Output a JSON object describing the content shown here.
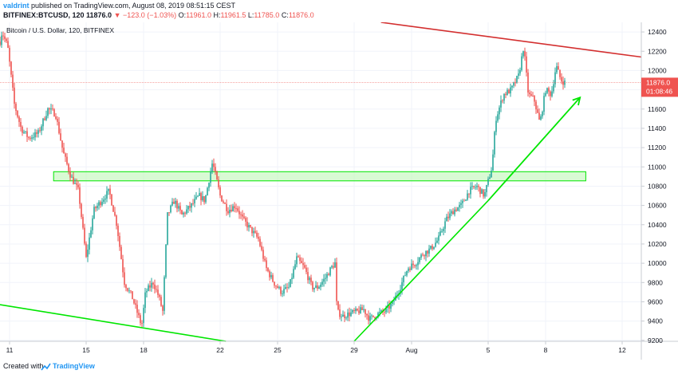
{
  "header": {
    "user": "valdrint",
    "published": "published on TradingView.com, August 08, 2019 08:51:15 CEST",
    "symbol": "BITFINEX:BTCUSD, 120",
    "last": "11876.0",
    "change_arrow": "▼",
    "change": "−123.0 (−1.03%)",
    "ohlc": {
      "o_label": "O:",
      "o": "11961.0",
      "h_label": "H:",
      "h": "11961.5",
      "l_label": "L:",
      "l": "11785.0",
      "c_label": "C:",
      "c": "11876.0"
    }
  },
  "footer": {
    "created_with": "Created with",
    "brand": "TradingView"
  },
  "colors": {
    "up": "#26a69a",
    "down": "#ef5350",
    "support": "#00e600",
    "resistance": "#d32f2f",
    "zone_fill": "#b9f6b0",
    "price_tag": "#ef5350"
  },
  "chart_data": {
    "type": "candlestick",
    "title": "Bitcoin / U.S. Dollar, 120, BITFINEX",
    "x_ticks": [
      {
        "day": 11,
        "label": "11"
      },
      {
        "day": 15,
        "label": "15"
      },
      {
        "day": 18,
        "label": "18"
      },
      {
        "day": 22,
        "label": "22"
      },
      {
        "day": 25,
        "label": "25"
      },
      {
        "day": 29,
        "label": "29"
      },
      {
        "day": 32,
        "label": "Aug"
      },
      {
        "day": 36,
        "label": "5"
      },
      {
        "day": 39,
        "label": "8"
      },
      {
        "day": 43,
        "label": "12"
      }
    ],
    "x_range": [
      10.5,
      44
    ],
    "ylim": [
      9190,
      12500
    ],
    "y_ticks": [
      9200,
      9400,
      9600,
      9800,
      10000,
      10200,
      10400,
      10600,
      10800,
      11000,
      11200,
      11400,
      11600,
      11800,
      12000,
      12200,
      12400
    ],
    "last_price": 11876.0,
    "last_price_label": "11876.0",
    "countdown_label": "01:08:46",
    "anchors": [
      [
        10.5,
        12300
      ],
      [
        10.6,
        12400
      ],
      [
        10.9,
        12250
      ],
      [
        11.25,
        11650
      ],
      [
        11.6,
        11400
      ],
      [
        12.0,
        11300
      ],
      [
        12.5,
        11350
      ],
      [
        13.0,
        11600
      ],
      [
        13.4,
        11550
      ],
      [
        13.8,
        11150
      ],
      [
        14.2,
        10900
      ],
      [
        14.6,
        10750
      ],
      [
        15.0,
        10050
      ],
      [
        15.4,
        10550
      ],
      [
        15.8,
        10650
      ],
      [
        16.2,
        10750
      ],
      [
        16.6,
        10400
      ],
      [
        17.0,
        9800
      ],
      [
        17.4,
        9650
      ],
      [
        17.9,
        9350
      ],
      [
        18.1,
        9700
      ],
      [
        18.5,
        9800
      ],
      [
        18.8,
        9650
      ],
      [
        19.0,
        9500
      ],
      [
        19.25,
        10500
      ],
      [
        19.6,
        10650
      ],
      [
        20.0,
        10500
      ],
      [
        20.5,
        10600
      ],
      [
        20.9,
        10700
      ],
      [
        21.2,
        10650
      ],
      [
        21.6,
        11050
      ],
      [
        22.0,
        10700
      ],
      [
        22.4,
        10550
      ],
      [
        22.8,
        10600
      ],
      [
        23.2,
        10450
      ],
      [
        23.6,
        10350
      ],
      [
        24.0,
        10250
      ],
      [
        24.4,
        9950
      ],
      [
        24.8,
        9800
      ],
      [
        25.2,
        9700
      ],
      [
        25.6,
        9750
      ],
      [
        26.0,
        10050
      ],
      [
        26.4,
        9950
      ],
      [
        26.8,
        9750
      ],
      [
        27.1,
        9750
      ],
      [
        27.5,
        9850
      ],
      [
        27.8,
        9950
      ],
      [
        28.0,
        10000
      ],
      [
        28.1,
        9500
      ],
      [
        28.4,
        9450
      ],
      [
        28.8,
        9480
      ],
      [
        29.2,
        9500
      ],
      [
        29.5,
        9520
      ],
      [
        29.8,
        9420
      ],
      [
        30.2,
        9470
      ],
      [
        30.6,
        9500
      ],
      [
        31.0,
        9580
      ],
      [
        31.4,
        9750
      ],
      [
        31.8,
        9950
      ],
      [
        32.2,
        10000
      ],
      [
        32.6,
        10100
      ],
      [
        33.0,
        10150
      ],
      [
        33.4,
        10250
      ],
      [
        33.8,
        10450
      ],
      [
        34.2,
        10550
      ],
      [
        34.6,
        10600
      ],
      [
        35.0,
        10750
      ],
      [
        35.4,
        10800
      ],
      [
        35.8,
        10700
      ],
      [
        36.0,
        10850
      ],
      [
        36.2,
        11000
      ],
      [
        36.4,
        11500
      ],
      [
        36.8,
        11750
      ],
      [
        37.2,
        11800
      ],
      [
        37.6,
        11950
      ],
      [
        37.85,
        12250
      ],
      [
        38.1,
        11750
      ],
      [
        38.4,
        11700
      ],
      [
        38.7,
        11450
      ],
      [
        39.0,
        11800
      ],
      [
        39.3,
        11750
      ],
      [
        39.55,
        12050
      ],
      [
        39.8,
        11900
      ],
      [
        40.0,
        11876
      ]
    ],
    "trendlines": [
      {
        "role": "support",
        "from": [
          10.5,
          9570
        ],
        "to": [
          22.3,
          9190
        ]
      },
      {
        "role": "support",
        "from": [
          29.0,
          9190
        ],
        "to": [
          36.0,
          10650
        ]
      },
      {
        "role": "resistance",
        "from": [
          30.4,
          12500
        ],
        "to": [
          44.0,
          12140
        ]
      }
    ],
    "arrow": {
      "from": [
        36.0,
        10650
      ],
      "to": [
        40.8,
        11720
      ]
    },
    "zone": {
      "x0": 13.3,
      "x1": 41.1,
      "y0": 10855,
      "y1": 10950
    }
  }
}
